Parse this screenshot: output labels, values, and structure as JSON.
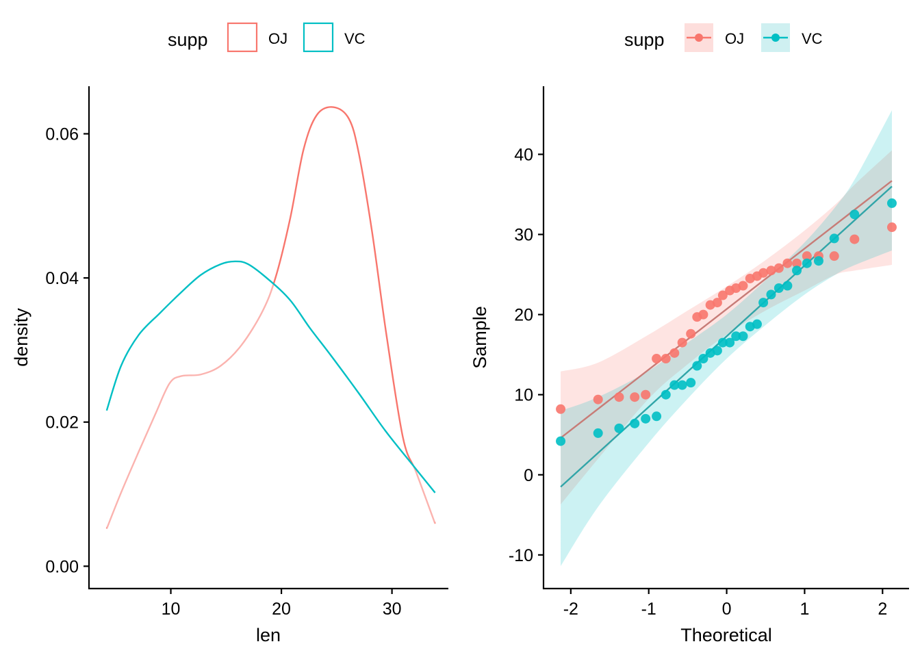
{
  "colors": {
    "OJ": "#F8766D",
    "VC": "#00BFC4",
    "OJ_line": "#C77C77",
    "VC_line": "#31A5A8",
    "OJ_band": "#FADDDB",
    "VC_band": "#CFEFF0",
    "overlap_band": "#CFD6D8"
  },
  "chart_data": [
    {
      "type": "line",
      "subtype": "density",
      "title": "",
      "xlabel": "len",
      "ylabel": "density",
      "xlim": [
        2.6,
        35.1
      ],
      "ylim": [
        -0.0031,
        0.0666
      ],
      "xticks": [
        10,
        20,
        30
      ],
      "xtick_labels": [
        "10",
        "20",
        "30"
      ],
      "yticks": [
        0.0,
        0.02,
        0.04,
        0.06
      ],
      "ytick_labels": [
        "0.00",
        "0.02",
        "0.04",
        "0.06"
      ],
      "grid": false,
      "legend": {
        "title": "supp",
        "position": "top",
        "entries": [
          "OJ",
          "VC"
        ],
        "key": "outline-box"
      },
      "series": [
        {
          "name": "OJ",
          "x": [
            4.2,
            5.5,
            7.1,
            8.6,
            9.9,
            11.0,
            12.7,
            14.5,
            16.4,
            18.3,
            19.5,
            20.8,
            22.0,
            23.2,
            24.7,
            26.1,
            27.0,
            28.2,
            29.5,
            31.0,
            32.2,
            33.9
          ],
          "y": [
            0.0052,
            0.0102,
            0.0159,
            0.0211,
            0.0254,
            0.0264,
            0.0266,
            0.0278,
            0.0307,
            0.0354,
            0.0402,
            0.0483,
            0.0578,
            0.0626,
            0.0637,
            0.0621,
            0.0573,
            0.0464,
            0.0321,
            0.0178,
            0.013,
            0.0059
          ]
        },
        {
          "name": "VC",
          "x": [
            4.2,
            5.5,
            7.1,
            9.0,
            10.8,
            12.7,
            14.5,
            15.8,
            17.0,
            18.9,
            20.8,
            22.6,
            24.5,
            27.0,
            29.4,
            31.9,
            33.9
          ],
          "y": [
            0.0216,
            0.0278,
            0.0321,
            0.0351,
            0.0378,
            0.0404,
            0.0419,
            0.0423,
            0.0419,
            0.0397,
            0.0369,
            0.033,
            0.0292,
            0.024,
            0.0188,
            0.014,
            0.0102
          ]
        }
      ]
    },
    {
      "type": "scatter",
      "subtype": "qq",
      "title": "",
      "xlabel": "Theoretical",
      "ylabel": "Sample",
      "xlim": [
        -2.35,
        2.34
      ],
      "ylim": [
        -14.2,
        48.5
      ],
      "xticks": [
        -2,
        -1,
        0,
        1,
        2
      ],
      "xtick_labels": [
        "-2",
        "-1",
        "0",
        "1",
        "2"
      ],
      "yticks": [
        -10,
        0,
        10,
        20,
        30,
        40
      ],
      "ytick_labels": [
        "-10",
        "0",
        "10",
        "20",
        "30",
        "40"
      ],
      "grid": false,
      "legend": {
        "title": "supp",
        "position": "top",
        "entries": [
          "OJ",
          "VC"
        ],
        "key": "point-line-band"
      },
      "series": [
        {
          "name": "OJ",
          "theoretical": [
            -2.13,
            -1.65,
            -1.38,
            -1.18,
            -1.04,
            -0.9,
            -0.78,
            -0.67,
            -0.57,
            -0.46,
            -0.38,
            -0.3,
            -0.21,
            -0.12,
            -0.05,
            0.04,
            0.12,
            0.21,
            0.3,
            0.39,
            0.47,
            0.57,
            0.67,
            0.78,
            0.9,
            1.03,
            1.18,
            1.38,
            1.64,
            2.12
          ],
          "sample": [
            8.2,
            9.4,
            9.7,
            9.7,
            10.0,
            14.5,
            14.5,
            15.2,
            16.5,
            17.6,
            19.7,
            20.0,
            21.2,
            21.5,
            22.4,
            23.0,
            23.3,
            23.6,
            24.5,
            24.8,
            25.2,
            25.5,
            25.8,
            26.4,
            26.4,
            27.3,
            27.3,
            27.3,
            29.4,
            30.9
          ],
          "qq_line": {
            "x": [
              -2.13,
              2.12
            ],
            "y": [
              4.6,
              36.7
            ]
          },
          "band": {
            "x": [
              -2.13,
              -1.65,
              -1.0,
              -0.5,
              0.0,
              0.5,
              1.0,
              1.4,
              1.65,
              2.12
            ],
            "lower": [
              -3.7,
              2.0,
              9.5,
              13.8,
              17.5,
              20.5,
              23.0,
              25.0,
              25.5,
              26.2
            ],
            "upper": [
              12.9,
              14.0,
              17.5,
              20.5,
              23.5,
              26.8,
              30.5,
              33.8,
              36.3,
              40.5
            ]
          }
        },
        {
          "name": "VC",
          "theoretical": [
            -2.13,
            -1.65,
            -1.38,
            -1.18,
            -1.04,
            -0.9,
            -0.78,
            -0.67,
            -0.57,
            -0.46,
            -0.38,
            -0.3,
            -0.21,
            -0.12,
            -0.05,
            0.04,
            0.12,
            0.21,
            0.3,
            0.39,
            0.47,
            0.57,
            0.67,
            0.78,
            0.9,
            1.03,
            1.18,
            1.38,
            1.64,
            2.12
          ],
          "sample": [
            4.2,
            5.2,
            5.8,
            6.4,
            7.0,
            7.3,
            10.0,
            11.2,
            11.2,
            11.5,
            13.6,
            14.5,
            15.2,
            15.5,
            16.5,
            16.5,
            17.3,
            17.3,
            18.5,
            18.8,
            21.5,
            22.5,
            23.3,
            23.6,
            25.5,
            26.4,
            26.7,
            29.5,
            32.5,
            33.9
          ],
          "qq_line": {
            "x": [
              -2.13,
              2.12
            ],
            "y": [
              -1.5,
              36.0
            ]
          },
          "band": {
            "x": [
              -2.13,
              -1.65,
              -1.0,
              -0.5,
              0.0,
              0.5,
              1.0,
              1.4,
              1.65,
              2.12
            ],
            "lower": [
              -11.4,
              -4.0,
              4.0,
              9.5,
              14.5,
              18.7,
              22.5,
              25.0,
              26.2,
              28.0
            ],
            "upper": [
              8.0,
              9.7,
              13.0,
              16.5,
              20.0,
              24.3,
              29.0,
              33.5,
              37.0,
              45.5
            ]
          }
        }
      ]
    }
  ]
}
